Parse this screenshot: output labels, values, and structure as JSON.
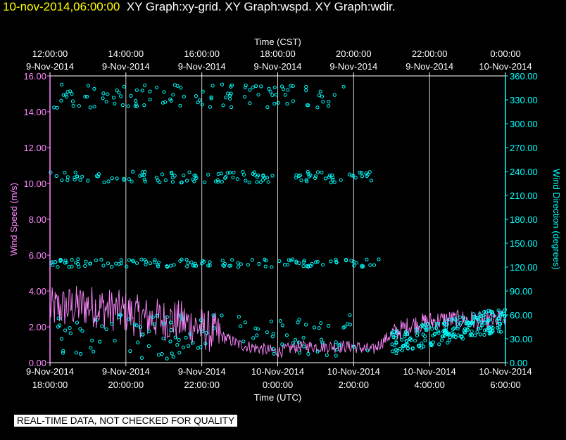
{
  "header": {
    "timestamp": "10-nov-2014,06:00:00",
    "titles": "XY Graph:xy-grid.  XY Graph:wspd.  XY Graph:wdir."
  },
  "notice": "REAL-TIME DATA, NOT CHECKED FOR QUALITY",
  "colors": {
    "background": "#000000",
    "speed": "#ff88ff",
    "direction": "#00ffff",
    "axis": "#ffffff",
    "header_time": "#ffff00"
  },
  "chart_data": {
    "type": "scatter",
    "top_axis": {
      "label": "Time (CST)",
      "ticks": [
        {
          "time": "12:00:00",
          "date": "9-Nov-2014"
        },
        {
          "time": "14:00:00",
          "date": "9-Nov-2014"
        },
        {
          "time": "16:00:00",
          "date": "9-Nov-2014"
        },
        {
          "time": "18:00:00",
          "date": "9-Nov-2014"
        },
        {
          "time": "20:00:00",
          "date": "9-Nov-2014"
        },
        {
          "time": "22:00:00",
          "date": "9-Nov-2014"
        },
        {
          "time": "0:00:00",
          "date": "10-Nov-2014"
        }
      ]
    },
    "bottom_axis": {
      "label": "Time (UTC)",
      "ticks": [
        {
          "date": "9-Nov-2014",
          "time": "18:00:00"
        },
        {
          "date": "9-Nov-2014",
          "time": "20:00:00"
        },
        {
          "date": "9-Nov-2014",
          "time": "22:00:00"
        },
        {
          "date": "10-Nov-2014",
          "time": "0:00:00"
        },
        {
          "date": "10-Nov-2014",
          "time": "2:00:00"
        },
        {
          "date": "10-Nov-2014",
          "time": "4:00:00"
        },
        {
          "date": "10-Nov-2014",
          "time": "6:00:00"
        }
      ]
    },
    "x_range_utc_hours": [
      18,
      30
    ],
    "left_axis": {
      "label": "Wind Speed (m/s)",
      "ylim": [
        0,
        16
      ],
      "ticks": [
        "0.00",
        "2.00",
        "4.00",
        "6.00",
        "8.00",
        "10.00",
        "12.00",
        "14.00",
        "16.00"
      ]
    },
    "right_axis": {
      "label": "Wind Direction (degrees)",
      "ylim": [
        0,
        360
      ],
      "ticks": [
        "0.00",
        "30.00",
        "60.00",
        "90.00",
        "120.00",
        "150.00",
        "180.00",
        "210.00",
        "240.00",
        "270.00",
        "300.00",
        "330.00",
        "360.00"
      ]
    },
    "grid": "vertical",
    "series": [
      {
        "axis": "left",
        "style": "line",
        "color": "#ff88ff",
        "x": [
          18.0,
          18.5,
          19.0,
          19.5,
          20.0,
          20.5,
          21.0,
          21.5,
          22.0,
          22.5,
          23.0,
          23.5,
          24.0,
          24.5,
          25.0,
          25.5,
          26.0,
          26.5,
          27.0,
          27.5,
          28.0,
          28.5,
          29.0,
          29.5,
          30.0
        ],
        "values": [
          3.0,
          3.1,
          3.2,
          3.0,
          2.8,
          2.5,
          2.4,
          2.3,
          1.9,
          1.5,
          1.0,
          0.8,
          0.6,
          0.9,
          0.9,
          0.9,
          0.9,
          0.7,
          1.6,
          2.1,
          2.3,
          2.4,
          2.4,
          2.3,
          2.5
        ]
      },
      {
        "axis": "right",
        "style": "markers",
        "color": "#00ffff",
        "clusters": [
          {
            "x": [
              18.1,
              26.0
            ],
            "values": [
              320,
              350
            ]
          },
          {
            "x": [
              18.0,
              26.7
            ],
            "values": [
              226,
              240
            ]
          },
          {
            "x": [
              18.0,
              26.7
            ],
            "values": [
              120,
              130
            ]
          },
          {
            "x": [
              18.2,
              26.7
            ],
            "values": [
              5,
              60
            ]
          },
          {
            "x": [
              27.0,
              30.0
            ],
            "values": [
              10,
              65
            ]
          }
        ]
      }
    ]
  }
}
